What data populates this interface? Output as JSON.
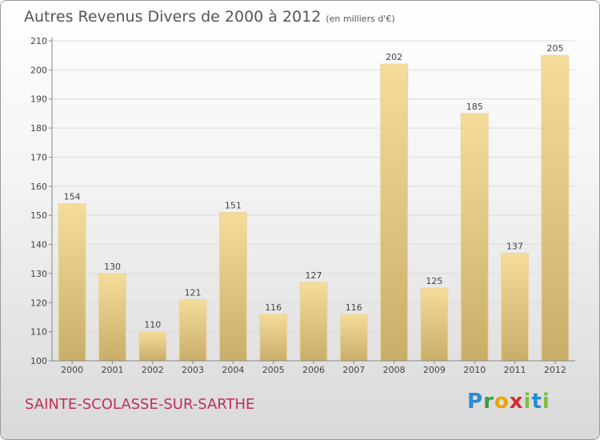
{
  "title": "Autres Revenus Divers de 2000 à 2012",
  "subtitle": "(en milliers d'€)",
  "location": "SAINTE-SCOLASSE-SUR-SARTHE",
  "brand": "Proxiti",
  "colors": {
    "bar_light": "#f5dc9a",
    "bar_dark": "#c9ae6a",
    "location": "#c0305a",
    "axis": "#888888"
  },
  "chart_data": {
    "type": "bar",
    "title": "Autres Revenus Divers de 2000 à 2012",
    "subtitle": "(en milliers d'€)",
    "xlabel": "",
    "ylabel": "",
    "categories": [
      "2000",
      "2001",
      "2002",
      "2003",
      "2004",
      "2005",
      "2006",
      "2007",
      "2008",
      "2009",
      "2010",
      "2011",
      "2012"
    ],
    "values": [
      154,
      130,
      110,
      121,
      151,
      116,
      127,
      116,
      202,
      125,
      185,
      137,
      205
    ],
    "ylim": [
      100,
      210
    ],
    "yticks": [
      100,
      110,
      120,
      130,
      140,
      150,
      160,
      170,
      180,
      190,
      200,
      210
    ],
    "grid": true,
    "legend": "none"
  }
}
